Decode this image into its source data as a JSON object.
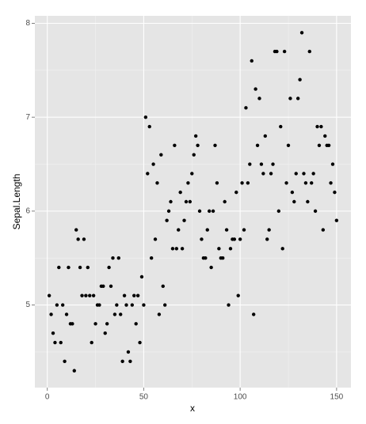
{
  "chart_data": {
    "type": "scatter",
    "xlabel": "x",
    "ylabel": "Sepal.Length",
    "color": "#000000",
    "x": [
      1,
      2,
      3,
      4,
      5,
      6,
      7,
      8,
      9,
      10,
      11,
      12,
      13,
      14,
      15,
      16,
      17,
      18,
      19,
      20,
      21,
      22,
      23,
      24,
      25,
      26,
      27,
      28,
      29,
      30,
      31,
      32,
      33,
      34,
      35,
      36,
      37,
      38,
      39,
      40,
      41,
      42,
      43,
      44,
      45,
      46,
      47,
      48,
      49,
      50,
      51,
      52,
      53,
      54,
      55,
      56,
      57,
      58,
      59,
      60,
      61,
      62,
      63,
      64,
      65,
      66,
      67,
      68,
      69,
      70,
      71,
      72,
      73,
      74,
      75,
      76,
      77,
      78,
      79,
      80,
      81,
      82,
      83,
      84,
      85,
      86,
      87,
      88,
      89,
      90,
      91,
      92,
      93,
      94,
      95,
      96,
      97,
      98,
      99,
      100,
      101,
      102,
      103,
      104,
      105,
      106,
      107,
      108,
      109,
      110,
      111,
      112,
      113,
      114,
      115,
      116,
      117,
      118,
      119,
      120,
      121,
      122,
      123,
      124,
      125,
      126,
      127,
      128,
      129,
      130,
      131,
      132,
      133,
      134,
      135,
      136,
      137,
      138,
      139,
      140,
      141,
      142,
      143,
      144,
      145,
      146,
      147,
      148,
      149,
      150
    ],
    "values": [
      5.1,
      4.9,
      4.7,
      4.6,
      5.0,
      5.4,
      4.6,
      5.0,
      4.4,
      4.9,
      5.4,
      4.8,
      4.8,
      4.3,
      5.8,
      5.7,
      5.4,
      5.1,
      5.7,
      5.1,
      5.4,
      5.1,
      4.6,
      5.1,
      4.8,
      5.0,
      5.0,
      5.2,
      5.2,
      4.7,
      4.8,
      5.4,
      5.2,
      5.5,
      4.9,
      5.0,
      5.5,
      4.9,
      4.4,
      5.1,
      5.0,
      4.5,
      4.4,
      5.0,
      5.1,
      4.8,
      5.1,
      4.6,
      5.3,
      5.0,
      7.0,
      6.4,
      6.9,
      5.5,
      6.5,
      5.7,
      6.3,
      4.9,
      6.6,
      5.2,
      5.0,
      5.9,
      6.0,
      6.1,
      5.6,
      6.7,
      5.6,
      5.8,
      6.2,
      5.6,
      5.9,
      6.1,
      6.3,
      6.1,
      6.4,
      6.6,
      6.8,
      6.7,
      6.0,
      5.7,
      5.5,
      5.5,
      5.8,
      6.0,
      5.4,
      6.0,
      6.7,
      6.3,
      5.6,
      5.5,
      5.5,
      6.1,
      5.8,
      5.0,
      5.6,
      5.7,
      5.7,
      6.2,
      5.1,
      5.7,
      6.3,
      5.8,
      7.1,
      6.3,
      6.5,
      7.6,
      4.9,
      7.3,
      6.7,
      7.2,
      6.5,
      6.4,
      6.8,
      5.7,
      5.8,
      6.4,
      6.5,
      7.7,
      7.7,
      6.0,
      6.9,
      5.6,
      7.7,
      6.3,
      6.7,
      7.2,
      6.2,
      6.1,
      6.4,
      7.2,
      7.4,
      7.9,
      6.4,
      6.3,
      6.1,
      7.7,
      6.3,
      6.4,
      6.0,
      6.9,
      6.7,
      6.9,
      5.8,
      6.8,
      6.7,
      6.7,
      6.3,
      6.5,
      6.2,
      5.9
    ],
    "xlim": [
      -6.45,
      157.45
    ],
    "xticks": [
      0,
      50,
      100,
      150
    ],
    "ylim": [
      4.12,
      8.08
    ],
    "yticks": [
      5,
      6,
      7,
      8
    ],
    "grid": true
  }
}
